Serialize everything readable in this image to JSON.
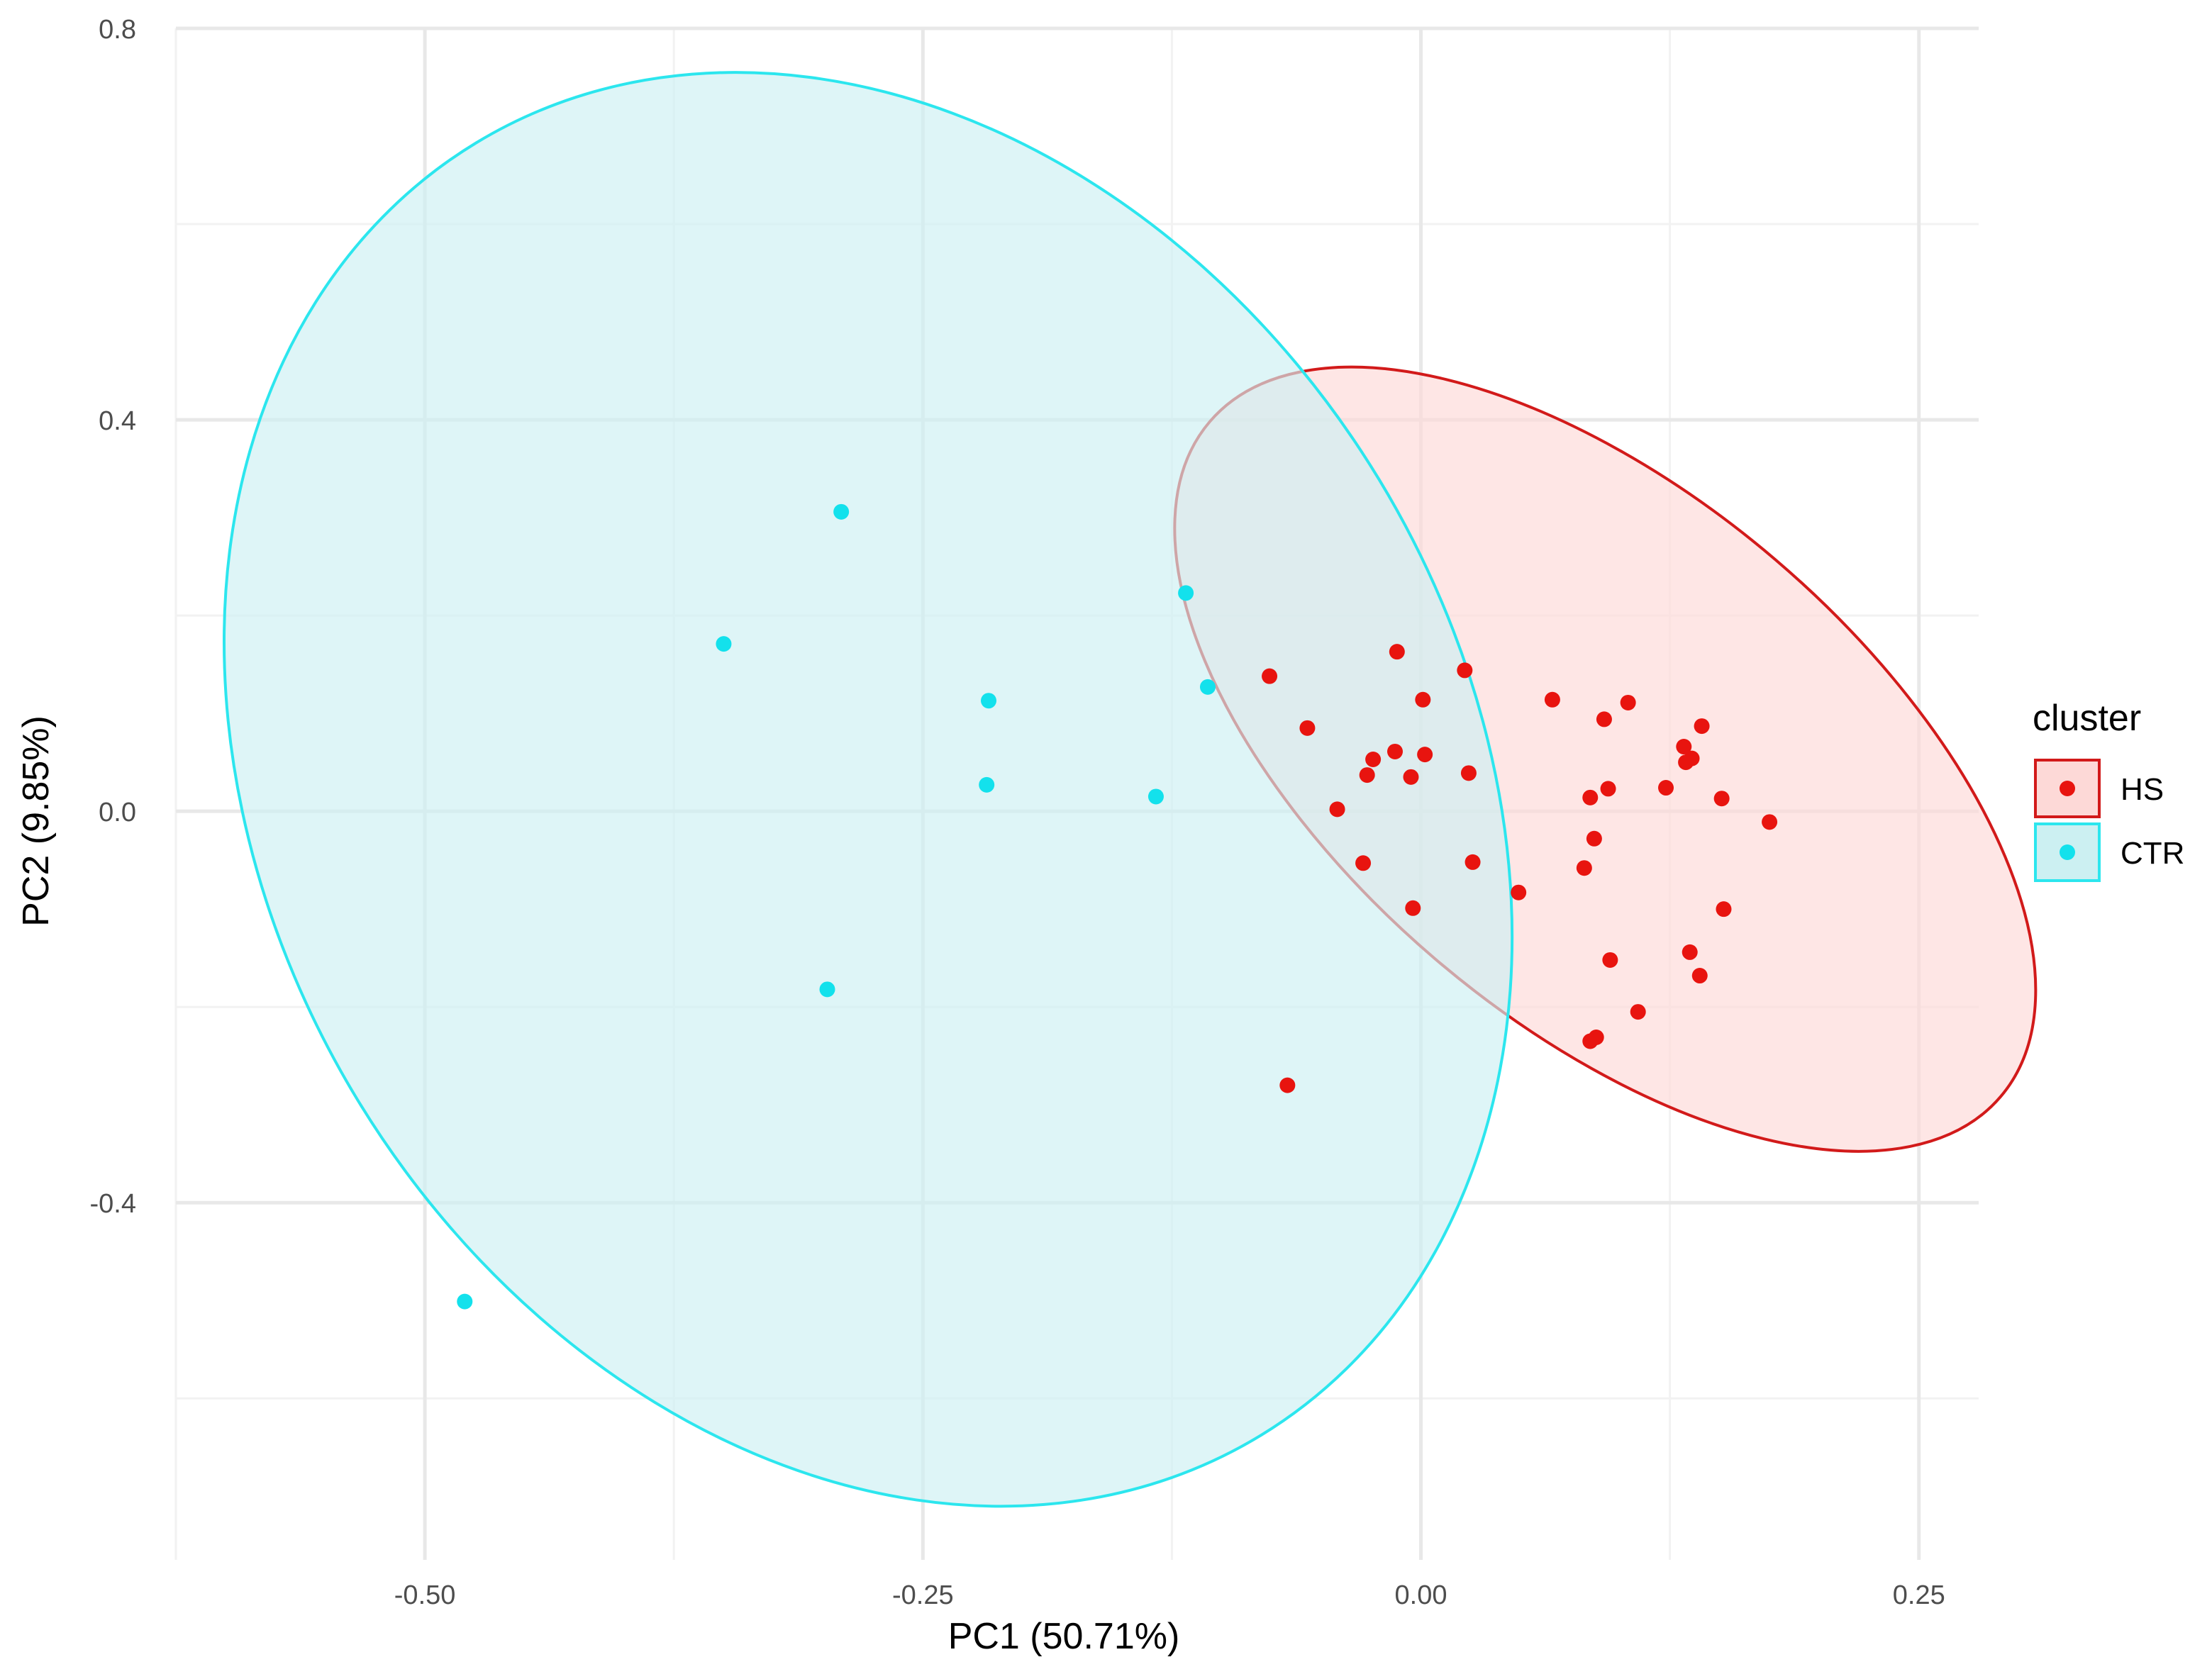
{
  "chart_data": {
    "type": "scatter",
    "xlabel": "PC1 (50.71%)",
    "ylabel": "PC2 (9.85%)",
    "xlim": [
      -0.625,
      0.28
    ],
    "ylim": [
      -0.765,
      0.8
    ],
    "x_ticks": [
      -0.5,
      -0.25,
      0.0,
      0.25
    ],
    "x_tick_labels": [
      "-0.50",
      "-0.25",
      "0.00",
      "0.25"
    ],
    "y_ticks": [
      -0.4,
      0.0,
      0.4,
      0.8
    ],
    "y_tick_labels": [
      "-0.4",
      "0.0",
      "0.4",
      "0.8"
    ],
    "grid": true,
    "legend": {
      "title": "cluster",
      "position": "right"
    },
    "series": [
      {
        "name": "HS",
        "color": "#e8140f",
        "fill": "#fdd9d7",
        "stroke": "#d21a1a",
        "ellipse": {
          "center": [
            0.0925,
            0.0532
          ],
          "semi_axes": [
            0.261,
            0.268
          ],
          "rotation_deg": 40.5
        },
        "points": [
          [
            -0.076,
            0.138
          ],
          [
            -0.057,
            0.085
          ],
          [
            -0.012,
            0.163
          ],
          [
            0.022,
            0.144
          ],
          [
            0.001,
            0.114
          ],
          [
            -0.024,
            0.053
          ],
          [
            -0.013,
            0.061
          ],
          [
            0.002,
            0.058
          ],
          [
            -0.027,
            0.037
          ],
          [
            -0.005,
            0.035
          ],
          [
            0.024,
            0.039
          ],
          [
            -0.042,
            0.002
          ],
          [
            -0.029,
            -0.053
          ],
          [
            0.026,
            -0.052
          ],
          [
            -0.004,
            -0.099
          ],
          [
            0.066,
            0.114
          ],
          [
            0.092,
            0.094
          ],
          [
            0.104,
            0.111
          ],
          [
            0.141,
            0.087
          ],
          [
            0.132,
            0.066
          ],
          [
            0.136,
            0.054
          ],
          [
            0.133,
            0.05
          ],
          [
            0.123,
            0.024
          ],
          [
            0.094,
            0.023
          ],
          [
            0.085,
            0.014
          ],
          [
            0.151,
            0.013
          ],
          [
            0.175,
            -0.011
          ],
          [
            0.087,
            -0.028
          ],
          [
            0.049,
            -0.083
          ],
          [
            0.082,
            -0.058
          ],
          [
            0.152,
            -0.1
          ],
          [
            0.095,
            -0.152
          ],
          [
            0.135,
            -0.144
          ],
          [
            0.14,
            -0.168
          ],
          [
            0.109,
            -0.205
          ],
          [
            0.088,
            -0.231
          ],
          [
            0.085,
            -0.235
          ],
          [
            -0.067,
            -0.28
          ]
        ]
      },
      {
        "name": "CTR",
        "color": "#13e1ec",
        "fill": "#ccf0f2",
        "stroke": "#2ce6ee",
        "ellipse": {
          "center": [
            -0.2775,
            0.0224
          ],
          "semi_axes": [
            0.3,
            0.7725
          ],
          "rotation_deg": -31.2
        },
        "points": [
          [
            -0.291,
            0.306
          ],
          [
            -0.35,
            0.171
          ],
          [
            -0.217,
            0.113
          ],
          [
            -0.118,
            0.223
          ],
          [
            -0.107,
            0.127
          ],
          [
            -0.218,
            0.027
          ],
          [
            -0.133,
            0.015
          ],
          [
            -0.298,
            -0.182
          ],
          [
            -0.48,
            -0.501
          ]
        ]
      }
    ]
  }
}
